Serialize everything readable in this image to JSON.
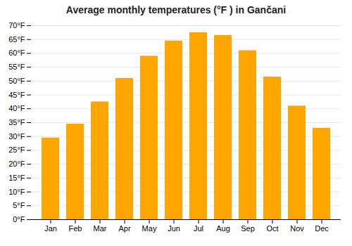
{
  "chart_data": {
    "type": "bar",
    "title": "Average monthly temperatures (°F ) in Gančani",
    "categories": [
      "Jan",
      "Feb",
      "Mar",
      "Apr",
      "May",
      "Jun",
      "Jul",
      "Aug",
      "Sep",
      "Oct",
      "Nov",
      "Dec"
    ],
    "values": [
      29.5,
      34.5,
      42.5,
      51.0,
      59.0,
      64.5,
      67.5,
      66.5,
      61.0,
      51.5,
      41.0,
      33.0
    ],
    "color": "#FFA500",
    "ylim": [
      0,
      70
    ],
    "yticks": [
      {
        "value": 0,
        "label": "0°F"
      },
      {
        "value": 5,
        "label": "5°F"
      },
      {
        "value": 10,
        "label": "10°F"
      },
      {
        "value": 15,
        "label": "15°F"
      },
      {
        "value": 20,
        "label": "20°F"
      },
      {
        "value": 25,
        "label": "25°F"
      },
      {
        "value": 30,
        "label": "30°F"
      },
      {
        "value": 35,
        "label": "35°F"
      },
      {
        "value": 40,
        "label": "40°F"
      },
      {
        "value": 45,
        "label": "45°F"
      },
      {
        "value": 50,
        "label": "50°F"
      },
      {
        "value": 55,
        "label": "55°F"
      },
      {
        "value": 60,
        "label": "60°F"
      },
      {
        "value": 65,
        "label": "65°F"
      },
      {
        "value": 70,
        "label": "70°F"
      }
    ],
    "grid": true
  }
}
